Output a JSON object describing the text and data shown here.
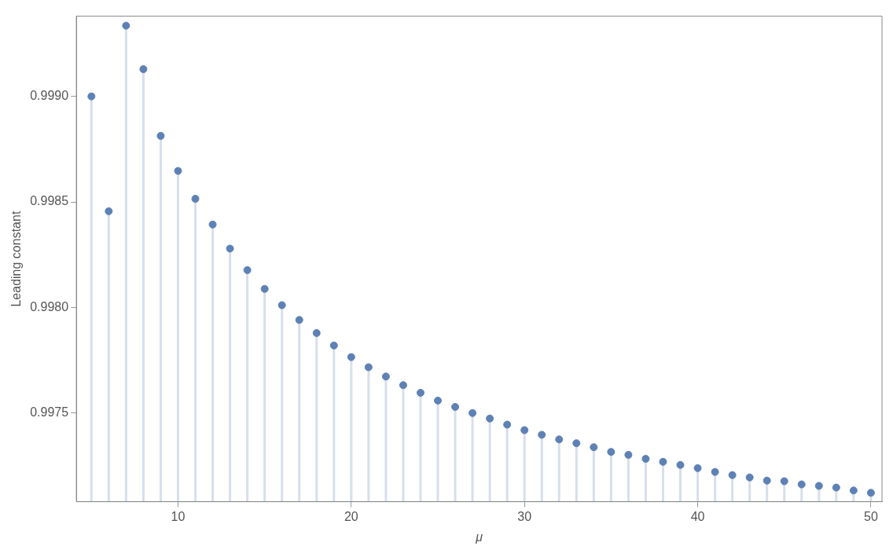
{
  "chart_data": {
    "type": "lollipop",
    "xlabel": "μ",
    "ylabel": "Leading constant",
    "color": "#5e81b5",
    "marker": "circle",
    "grid": false,
    "legend": false,
    "x": [
      5,
      6,
      7,
      8,
      9,
      10,
      11,
      12,
      13,
      14,
      15,
      16,
      17,
      18,
      19,
      20,
      21,
      22,
      23,
      24,
      25,
      26,
      27,
      28,
      29,
      30,
      31,
      32,
      33,
      34,
      35,
      36,
      37,
      38,
      39,
      40,
      41,
      42,
      43,
      44,
      45,
      46,
      47,
      48,
      49,
      50
    ],
    "values": [
      0.999,
      0.998456,
      0.999335,
      0.999129,
      0.998813,
      0.998647,
      0.998515,
      0.998393,
      0.998279,
      0.998177,
      0.998088,
      0.998011,
      0.997941,
      0.997879,
      0.99782,
      0.997765,
      0.997717,
      0.997673,
      0.997632,
      0.997596,
      0.997559,
      0.997529,
      0.9975,
      0.997474,
      0.997445,
      0.997419,
      0.997397,
      0.997375,
      0.997357,
      0.997338,
      0.997316,
      0.997302,
      0.997283,
      0.997269,
      0.997254,
      0.997239,
      0.997221,
      0.997206,
      0.997195,
      0.99718,
      0.997177,
      0.997162,
      0.997155,
      0.997147,
      0.997133,
      0.997122
    ],
    "xlim": [
      4.13,
      50.64
    ],
    "xticks": [
      10,
      20,
      30,
      40,
      50
    ],
    "ylim": [
      0.99708,
      0.99938
    ],
    "yticks": [
      {
        "value": 0.9975,
        "label": "0.9975"
      },
      {
        "value": 0.998,
        "label": "0.9980"
      },
      {
        "value": 0.9985,
        "label": "0.9985"
      },
      {
        "value": 0.999,
        "label": "0.9990"
      }
    ]
  }
}
